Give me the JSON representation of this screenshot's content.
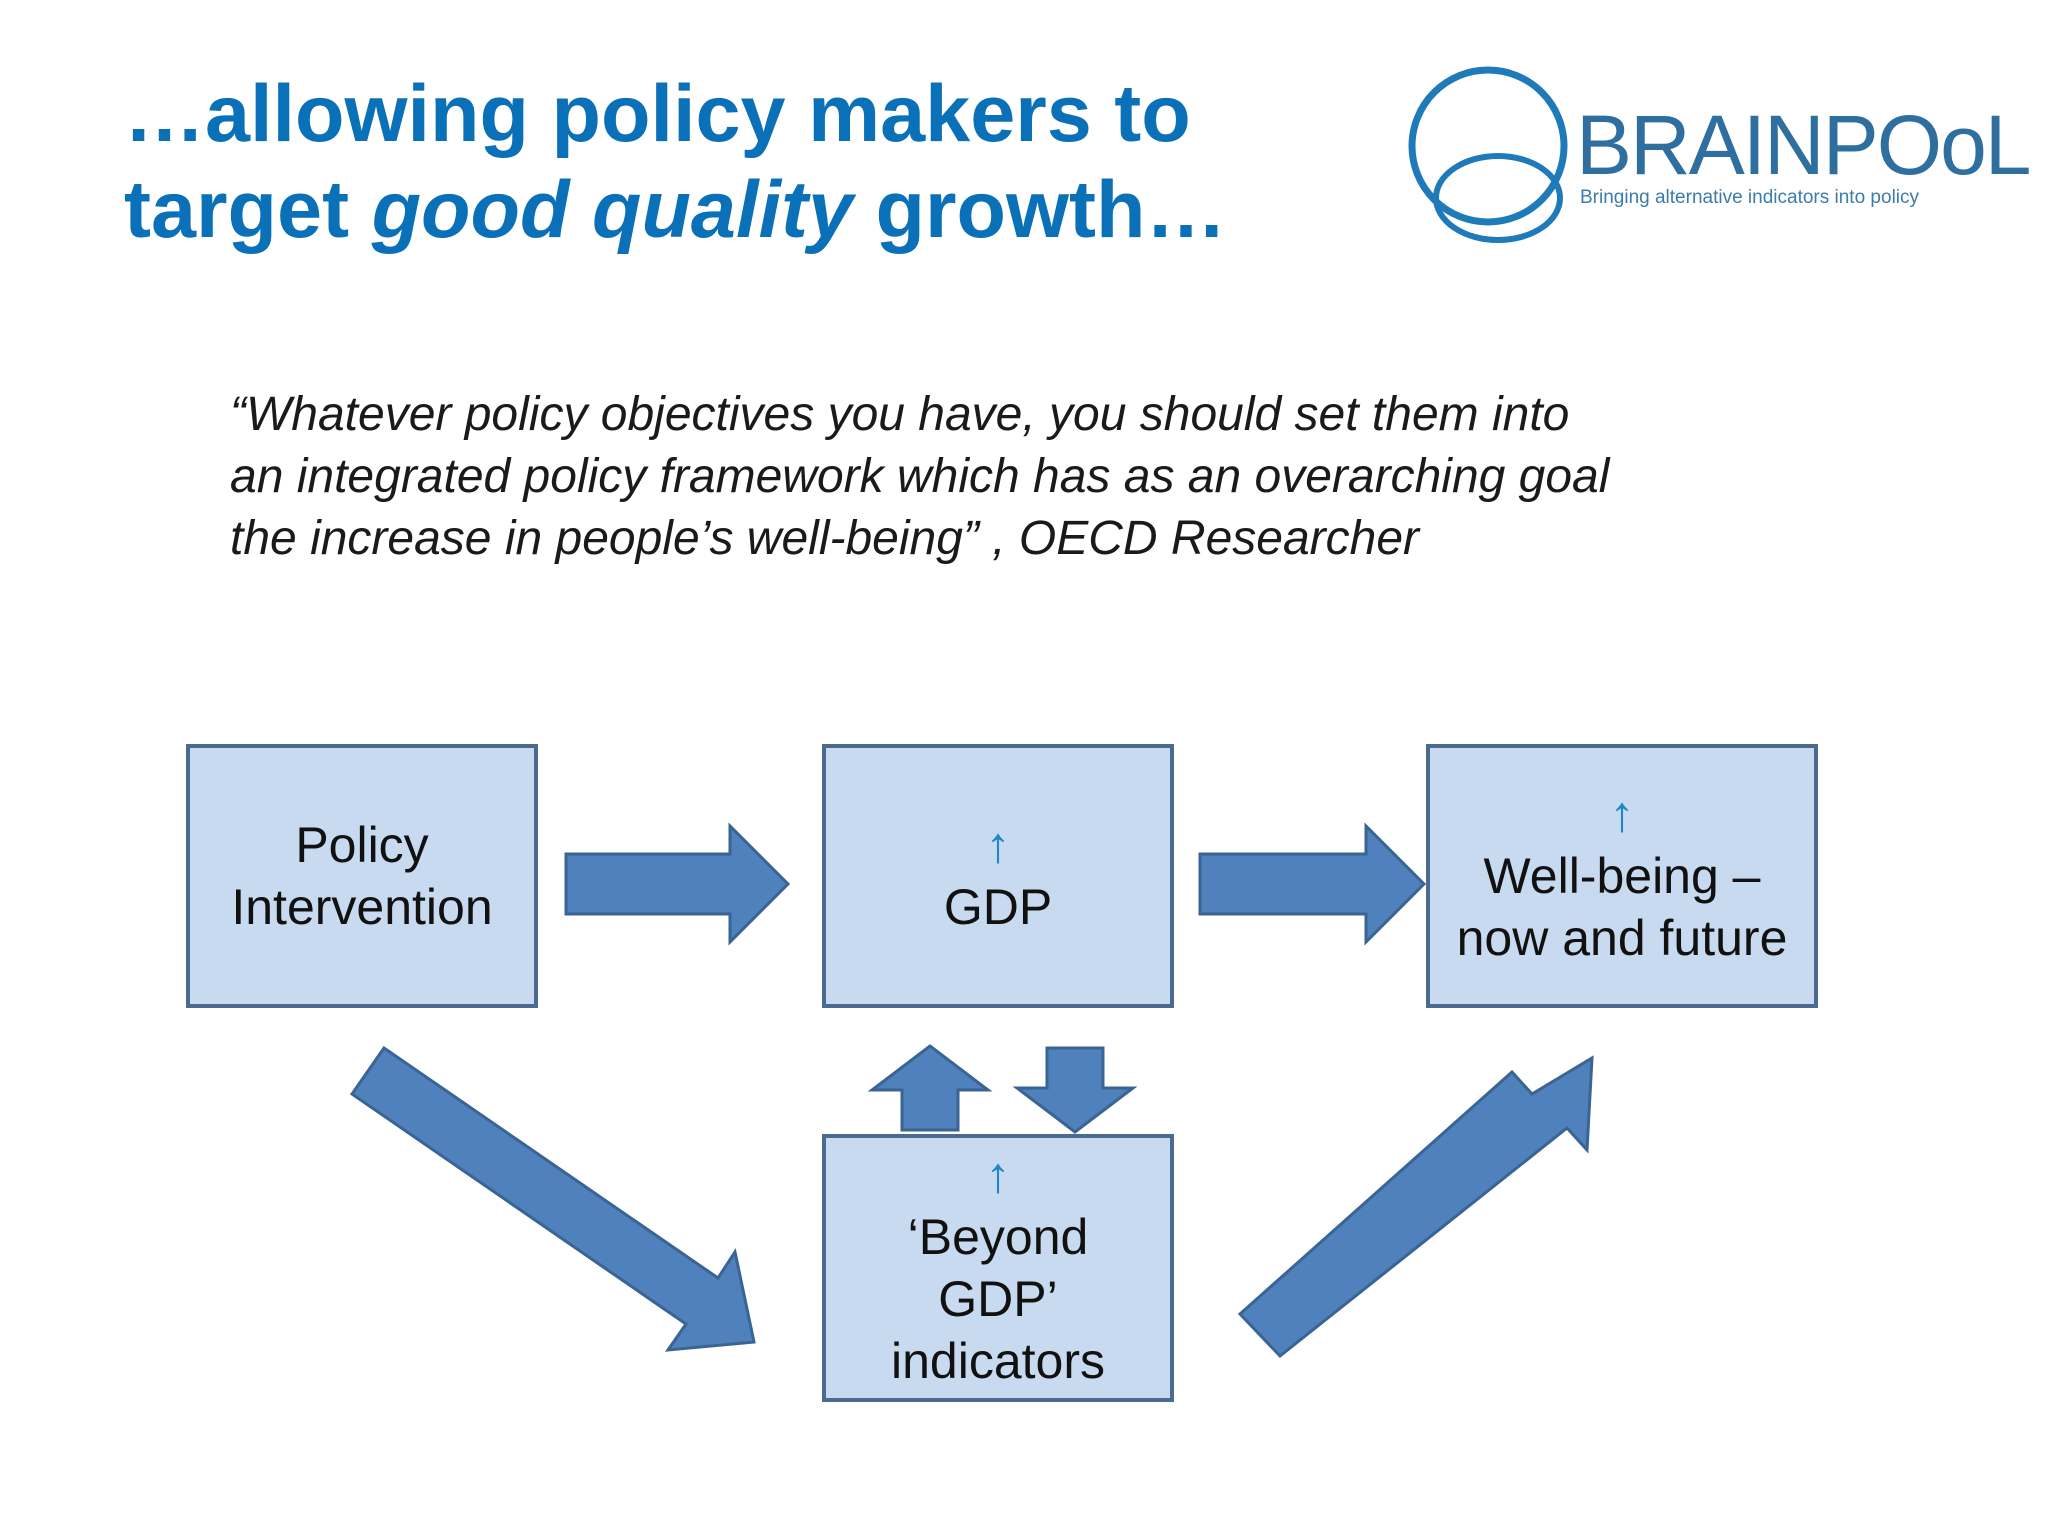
{
  "title": {
    "line1": "…allowing policy makers to",
    "line2_prefix": "target ",
    "line2_emphasis": "good quality",
    "line2_suffix": " growth…"
  },
  "logo": {
    "name": "BRAINPOoL",
    "tagline": "Bringing alternative indicators into policy"
  },
  "quote": {
    "line1": "“Whatever policy objectives you have, you should set them into",
    "line2": "an integrated policy framework which has as an overarching goal",
    "line3": "the increase in people’s well-being” , OECD Researcher"
  },
  "diagram": {
    "policy_box": {
      "line1": "Policy",
      "line2": "Intervention"
    },
    "gdp_box": {
      "arrow": "↑",
      "label": "GDP"
    },
    "wellbeing_box": {
      "arrow": "↑",
      "line1": "Well-being  –",
      "line2": "now and future"
    },
    "beyond_box": {
      "arrow": "↑",
      "line1": "‘Beyond",
      "line2": "GDP’",
      "line3": "indicators"
    },
    "colors": {
      "box_fill": "#c8daf0",
      "box_border": "#4a6a92",
      "arrow_fill": "#4f81bd",
      "arrow_stroke": "#3a6494",
      "title": "#0a70b8"
    }
  }
}
